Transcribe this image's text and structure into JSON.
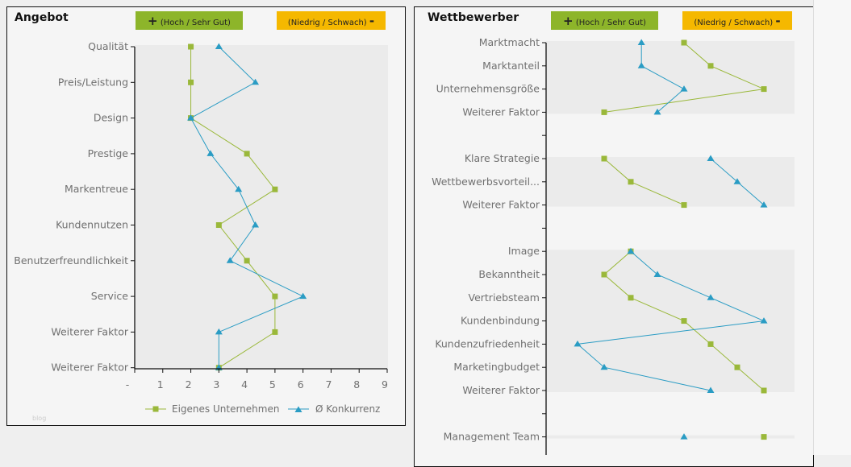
{
  "legend_plus": "+",
  "legend_minus": "-",
  "high_label": "(Hoch / Sehr Gut)",
  "low_label": "(Niedrig / Schwach)",
  "colors": {
    "eigen": "#9ab83a",
    "konkurrenz": "#2a9cc4",
    "band": "#ebebeb",
    "green": "#8db52a",
    "yellow": "#f5b800"
  },
  "chart_data": [
    {
      "type": "line",
      "title": "Angebot",
      "orientation": "horizontal-values",
      "categories": [
        "Qualität",
        "Preis/Leistung",
        "Design",
        "Prestige",
        "Markentreue",
        "Kundennutzen",
        "Benutzerfreundlichkeit",
        "Service",
        "Weiterer Faktor",
        "Weiterer Faktor"
      ],
      "series": [
        {
          "name": "Eigenes Unternehmen",
          "marker": "square",
          "values": [
            2,
            2,
            2,
            4,
            5,
            3,
            4,
            5,
            5,
            3
          ]
        },
        {
          "name": "Ø Konkurrenz",
          "marker": "triangle",
          "values": [
            3,
            4.3,
            2,
            2.7,
            3.7,
            4.3,
            3.4,
            6,
            3,
            3
          ]
        }
      ],
      "xticks": [
        "-",
        "1",
        "2",
        "3",
        "4",
        "5",
        "6",
        "7",
        "8",
        "9"
      ],
      "xlim": [
        0,
        9
      ],
      "legend": "bottom",
      "watermark": "blog"
    },
    {
      "type": "line",
      "title": "Wettbewerber",
      "orientation": "horizontal-values",
      "categories": [
        "Marktmacht",
        "Marktanteil",
        "Unternehmensgröße",
        "Weiterer Faktor",
        "",
        "Klare Strategie",
        "Wettbewerbsvorteil...",
        "Weiterer Faktor",
        "",
        "Image",
        "Bekanntheit",
        "Vertriebsteam",
        "Kundenbindung",
        "Kundenzufriedenheit",
        "Marketingbudget",
        "Weiterer Faktor",
        "",
        "Management Team"
      ],
      "series": [
        {
          "name": "Eigenes Unternehmen",
          "marker": "square",
          "values": [
            5,
            6,
            8,
            2,
            null,
            2,
            3,
            5,
            null,
            3,
            2,
            3,
            5,
            6,
            7,
            8,
            null,
            8
          ]
        },
        {
          "name": "Ø Konkurrenz",
          "marker": "triangle",
          "values": [
            3.4,
            3.4,
            5,
            4,
            null,
            6,
            7,
            8,
            null,
            3,
            4,
            6,
            8,
            1,
            2,
            6,
            null,
            5
          ]
        }
      ],
      "xlim": [
        0,
        9
      ]
    }
  ]
}
